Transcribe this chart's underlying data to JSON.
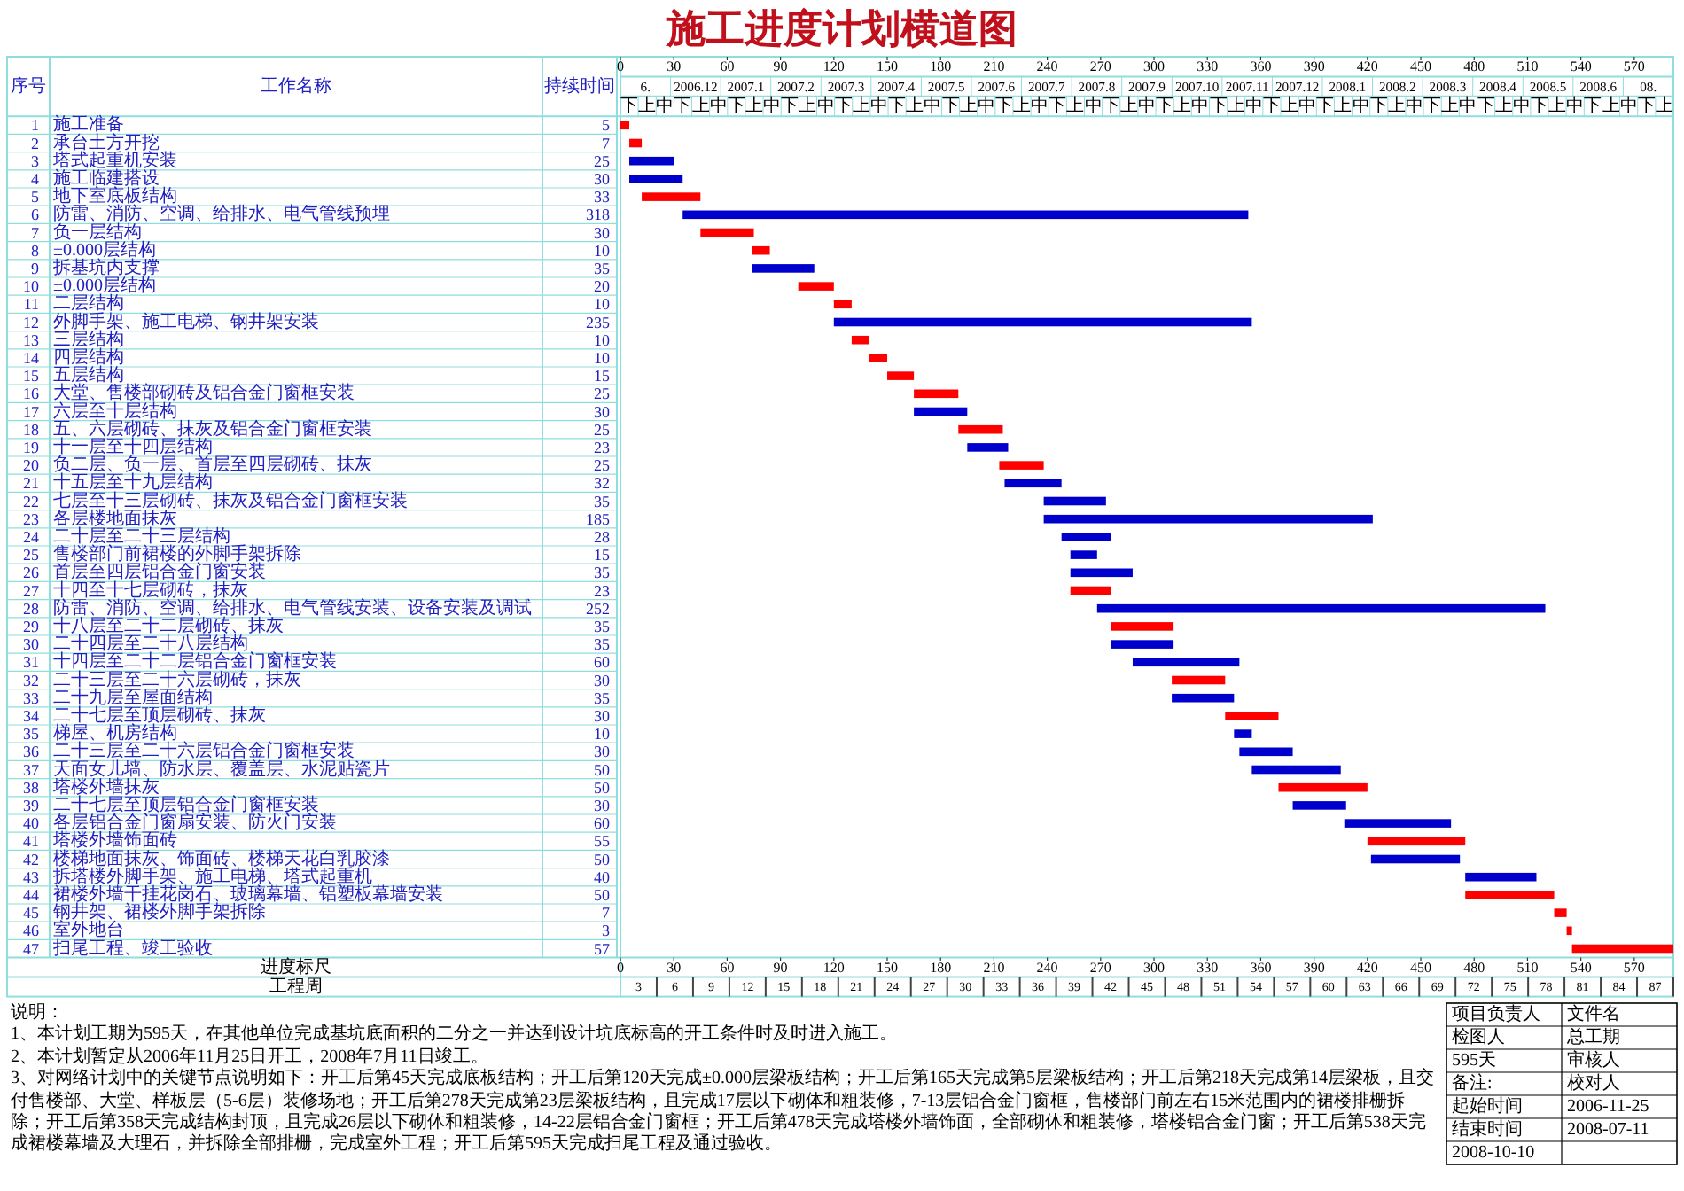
{
  "chart_data": {
    "type": "bar",
    "orientation": "horizontal",
    "title": "施工进度计划横道图",
    "ylabel": "工作名称",
    "xlabel": "进度标尺",
    "categories": [
      "施工准备",
      "承台土方开挖",
      "塔式起重机安装",
      "施工临建搭设",
      "地下室底板结构",
      "防雷、消防、空调、给排水、电气管线预埋",
      "负一层结构",
      "±0.000层结构",
      "拆基坑内支撑",
      "±0.000层结构",
      "二层结构",
      "外脚手架、施工电梯、钢井架安装",
      "三层结构",
      "四层结构",
      "五层结构",
      "大堂、售楼部砌砖及铝合金门窗框安装",
      "六层至十层结构",
      "五、六层砌砖、抹灰及铝合金门窗框安装",
      "十一层至十四层结构",
      "负二层、负一层、首层至四层砌砖、抹灰",
      "十五层至十九层结构",
      "七层至十三层砌砖、抹灰及铝合金门窗框安装",
      "各层楼地面抹灰",
      "二十层至二十三层结构",
      "售楼部门前裙楼的外脚手架拆除",
      "首层至四层铝合金门窗安装",
      "十四至十七层砌砖，抹灰",
      "防雷、消防、空调、给排水、电气管线安装、设备安装及调试",
      "十八层至二十二层砌砖、抹灰",
      "二十四层至二十八层结构",
      "十四层至二十二层铝合金门窗框安装",
      "二十三层至二十六层砌砖，抹灰",
      "二十九层至屋面结构",
      "二十七层至顶层砌砖、抹灰",
      "梯屋、机房结构",
      "二十三层至二十六层铝合金门窗框安装",
      "天面女儿墙、防水层、覆盖层、水泥贴瓷片",
      "塔楼外墙抹灰",
      "二十七层至顶层铝合金门窗框安装",
      "各层铝合金门窗扇安装、防火门安装",
      "塔楼外墙饰面砖",
      "楼梯地面抹灰、饰面砖、楼梯天花白乳胶漆",
      "拆塔楼外脚手架、施工电梯、塔式起重机",
      "裙楼外墙干挂花岗石、玻璃幕墙、铝塑板幕墙安装",
      "钢井架、裙楼外脚手架拆除",
      "室外地台",
      "扫尾工程、竣工验收"
    ],
    "y2_categories": [
      "1",
      "2",
      "3",
      "4",
      "5",
      "6",
      "7",
      "8",
      "9",
      "10",
      "11",
      "12",
      "13",
      "14",
      "15",
      "16",
      "17",
      "18",
      "19",
      "20",
      "21",
      "22",
      "23",
      "24",
      "25",
      "26",
      "27",
      "28",
      "29",
      "30",
      "31",
      "32",
      "33",
      "34",
      "35",
      "36",
      "37",
      "38",
      "39",
      "40",
      "41",
      "42",
      "43",
      "44",
      "45",
      "46",
      "47"
    ],
    "values": [
      5,
      7,
      25,
      30,
      33,
      318,
      30,
      10,
      35,
      20,
      10,
      235,
      10,
      10,
      15,
      25,
      30,
      25,
      23,
      25,
      32,
      35,
      185,
      28,
      15,
      35,
      23,
      252,
      35,
      35,
      60,
      30,
      35,
      30,
      10,
      30,
      50,
      50,
      30,
      60,
      55,
      50,
      40,
      50,
      7,
      3,
      57
    ],
    "base": [
      0,
      5,
      5,
      5,
      12,
      35,
      45,
      74,
      74,
      100,
      120,
      120,
      130,
      140,
      150,
      165,
      165,
      190,
      195,
      213,
      216,
      238,
      238,
      248,
      253,
      253,
      253,
      268,
      276,
      276,
      288,
      310,
      310,
      340,
      345,
      348,
      355,
      370,
      378,
      407,
      420,
      422,
      475,
      475,
      525,
      532,
      535
    ],
    "colors": [
      "#ff0000",
      "#ff0000",
      "#0000cc",
      "#0000cc",
      "#ff0000",
      "#0000cc",
      "#ff0000",
      "#ff0000",
      "#0000cc",
      "#ff0000",
      "#ff0000",
      "#0000cc",
      "#ff0000",
      "#ff0000",
      "#ff0000",
      "#ff0000",
      "#0000cc",
      "#ff0000",
      "#0000cc",
      "#ff0000",
      "#0000cc",
      "#0000cc",
      "#0000cc",
      "#0000cc",
      "#0000cc",
      "#0000cc",
      "#ff0000",
      "#0000cc",
      "#ff0000",
      "#0000cc",
      "#0000cc",
      "#ff0000",
      "#0000cc",
      "#ff0000",
      "#0000cc",
      "#0000cc",
      "#0000cc",
      "#ff0000",
      "#0000cc",
      "#0000cc",
      "#ff0000",
      "#0000cc",
      "#0000cc",
      "#ff0000",
      "#ff0000",
      "#ff0000",
      "#ff0000"
    ],
    "data_labels": true,
    "xlim": [
      0,
      592
    ],
    "xticks": [
      0,
      30,
      60,
      90,
      120,
      150,
      180,
      210,
      240,
      270,
      300,
      330,
      360,
      390,
      420,
      450,
      480,
      510,
      540,
      570
    ],
    "x2lim": [
      0,
      592
    ],
    "x2ticks": [
      0,
      30,
      60,
      90,
      120,
      150,
      180,
      210,
      240,
      270,
      300,
      330,
      360,
      390,
      420,
      450,
      480,
      510,
      540,
      570
    ],
    "annotations": [
      "序号",
      "持续时间",
      "工程周",
      "说明：",
      "1、本计划工期为595天，在其他单位完成基坑底面积的二分之一并达到设计坑底标高的开工条件时及时进入施工。",
      "2、本计划暂定从2006年11月25日开工，2008年7月11日竣工。",
      "3、对网络计划中的关键节点说明如下：开工后第45天完成底板结构；开工后第120天完成±0.000层梁板结构；开工后第165天完成第5层梁板结构；开工后第218天完成第14层梁板，且交付售楼部、大堂、样板层（5-6层）装修场地；开工后第278天完成第23层梁板结构，且完成17层以下砌体和粗装修，7-13层铝合金门窗框，售楼部门前左右15米范围内的裙楼排栅拆除；开工后第358天完成结构封顶，且完成26层以下砌体和粗装修，14-22层铝合金门窗框；开工后第478天完成塔楼外墙饰面，全部砌体和粗装修，塔楼铝合金门窗；开工后第538天完成裙楼幕墙及大理石，并拆除全部排栅，完成室外工程；开工后第595天完成扫尾工程及通过验收。",
      "项目负责人",
      "文件名",
      "检图人",
      "总工期",
      "595天",
      "审核人",
      "备注:",
      "校对人",
      "起始时间",
      "2006-11-25",
      "结束时间",
      "2008-07-11",
      "2008-10-10",
      "6.",
      "2006.12",
      "2007.1",
      "2007.2",
      "2007.3",
      "2007.4",
      "2007.5",
      "2007.6",
      "2007.7",
      "2007.8",
      "2007.9",
      "2007.10",
      "2007.11",
      "2007.12",
      "2008.1",
      "2008.2",
      "2008.3",
      "2008.4",
      "2008.5",
      "2008.6",
      "08.",
      "下",
      "上",
      "中",
      "下",
      "上",
      "中",
      "下",
      "上",
      "中",
      "下",
      "上",
      "中",
      "下",
      "上",
      "中",
      "下",
      "上",
      "中",
      "下",
      "上",
      "中",
      "下",
      "上",
      "中",
      "下",
      "上",
      "中",
      "下",
      "上",
      "中",
      "下",
      "上",
      "中",
      "下",
      "上",
      "中",
      "下",
      "上",
      "中",
      "下",
      "上",
      "中",
      "下",
      "上",
      "中",
      "下",
      "上",
      "中",
      "下",
      "上",
      "中",
      "下",
      "上",
      "中",
      "下",
      "上",
      "中",
      "下",
      "上",
      "3",
      "6",
      "9",
      "12",
      "15",
      "18",
      "21",
      "24",
      "27",
      "30",
      "33",
      "36",
      "39",
      "42",
      "45",
      "48",
      "51",
      "54",
      "57",
      "60",
      "63",
      "66",
      "69",
      "72",
      "75",
      "78",
      "81",
      "84",
      "87"
    ]
  }
}
